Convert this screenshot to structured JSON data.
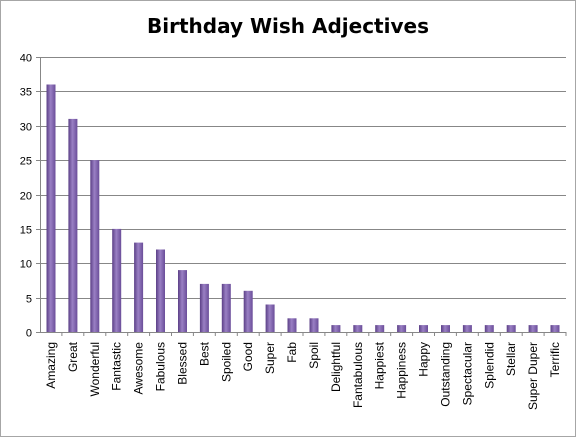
{
  "chart_data": {
    "type": "bar",
    "title": "Birthday Wish Adjectives",
    "xlabel": "",
    "ylabel": "",
    "ylim": [
      0,
      40
    ],
    "yticks": [
      0,
      5,
      10,
      15,
      20,
      25,
      30,
      35,
      40
    ],
    "grid": true,
    "legend": "none",
    "bar_color": "#7b5ea7",
    "categories": [
      "Amazing",
      "Great",
      "Wonderful",
      "Fantastic",
      "Awesome",
      "Fabulous",
      "Blessed",
      "Best",
      "Spoiled",
      "Good",
      "Super",
      "Fab",
      "Spoil",
      "Delightful",
      "Fantabulous",
      "Happiest",
      "Happiness",
      "Happy",
      "Outstanding",
      "Spectacular",
      "Splendid",
      "Stellar",
      "Super Duper",
      "Terrific"
    ],
    "values": [
      36,
      31,
      25,
      15,
      13,
      12,
      9,
      7,
      7,
      6,
      4,
      2,
      2,
      1,
      1,
      1,
      1,
      1,
      1,
      1,
      1,
      1,
      1,
      1
    ]
  }
}
